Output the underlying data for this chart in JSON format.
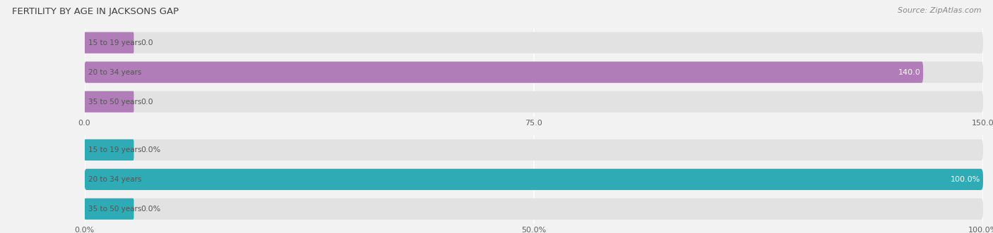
{
  "title": "FERTILITY BY AGE IN JACKSONS GAP",
  "source": "Source: ZipAtlas.com",
  "background_color": "#f2f2f2",
  "top_chart": {
    "categories": [
      "15 to 19 years",
      "20 to 34 years",
      "35 to 50 years"
    ],
    "values": [
      0.0,
      140.0,
      0.0
    ],
    "bar_color": "#b07db8",
    "bar_bg_color": "#e2e2e2",
    "xlim": [
      0,
      150
    ],
    "xticks": [
      0.0,
      75.0,
      150.0
    ],
    "xtick_labels": [
      "0.0",
      "75.0",
      "150.0"
    ],
    "value_labels": [
      "0.0",
      "140.0",
      "0.0"
    ]
  },
  "bottom_chart": {
    "categories": [
      "15 to 19 years",
      "20 to 34 years",
      "35 to 50 years"
    ],
    "values": [
      0.0,
      100.0,
      0.0
    ],
    "bar_color": "#2fabb5",
    "bar_bg_color": "#e2e2e2",
    "xlim": [
      0,
      100
    ],
    "xticks": [
      0.0,
      50.0,
      100.0
    ],
    "xtick_labels": [
      "0.0%",
      "50.0%",
      "100.0%"
    ],
    "value_labels": [
      "0.0%",
      "100.0%",
      "0.0%"
    ]
  }
}
